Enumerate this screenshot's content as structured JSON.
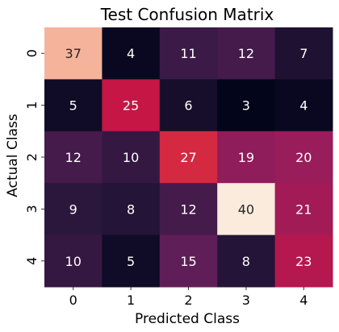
{
  "chart_data": {
    "type": "heatmap",
    "title": "Test Confusion Matrix",
    "xlabel": "Predicted Class",
    "ylabel": "Actual Class",
    "x_categories": [
      "0",
      "1",
      "2",
      "3",
      "4"
    ],
    "y_categories": [
      "0",
      "1",
      "2",
      "3",
      "4"
    ],
    "values": [
      [
        37,
        4,
        11,
        12,
        7
      ],
      [
        5,
        25,
        6,
        3,
        4
      ],
      [
        12,
        10,
        27,
        19,
        20
      ],
      [
        9,
        8,
        12,
        40,
        21
      ],
      [
        10,
        5,
        15,
        8,
        23
      ]
    ],
    "colorbar": false,
    "colormap": "rocket",
    "value_range": [
      3,
      40
    ]
  }
}
